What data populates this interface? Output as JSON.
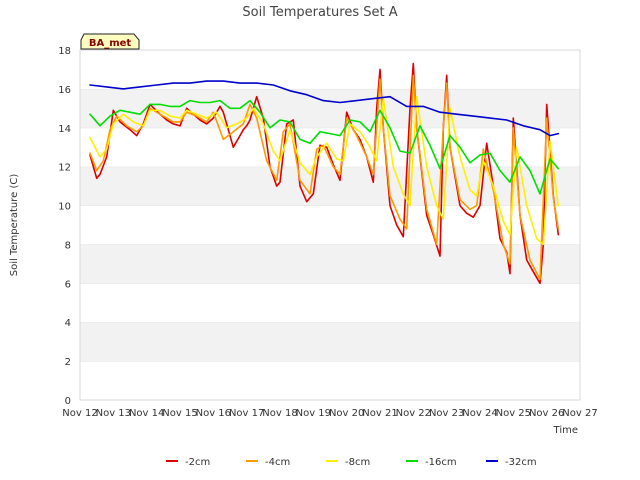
{
  "chart_data": {
    "type": "line",
    "title": "Soil Temperatures Set A",
    "xlabel": "Time",
    "ylabel": "Soil Temperature (C)",
    "ylim": [
      0,
      18
    ],
    "yticks": [
      0,
      2,
      4,
      6,
      8,
      10,
      12,
      14,
      16,
      18
    ],
    "xlim": [
      12,
      27
    ],
    "xticks": [
      {
        "v": 12,
        "label": "Nov 12"
      },
      {
        "v": 13,
        "label": "Nov 13"
      },
      {
        "v": 14,
        "label": "Nov 14"
      },
      {
        "v": 15,
        "label": "Nov 15"
      },
      {
        "v": 16,
        "label": "Nov 16"
      },
      {
        "v": 17,
        "label": "Nov 17"
      },
      {
        "v": 18,
        "label": "Nov 18"
      },
      {
        "v": 19,
        "label": "Nov 19"
      },
      {
        "v": 20,
        "label": "Nov 20"
      },
      {
        "v": 21,
        "label": "Nov 21"
      },
      {
        "v": 22,
        "label": "Nov 22"
      },
      {
        "v": 23,
        "label": "Nov 23"
      },
      {
        "v": 24,
        "label": "Nov 24"
      },
      {
        "v": 25,
        "label": "Nov 25"
      },
      {
        "v": 26,
        "label": "Nov 26"
      },
      {
        "v": 27,
        "label": "Nov 27"
      }
    ],
    "grid": "alternating horizontal bands",
    "legend_position": "bottom",
    "annotation": "BA_met",
    "series": [
      {
        "name": "-2cm",
        "color": "#dd0000",
        "x": [
          12.3,
          12.5,
          12.6,
          12.8,
          13.0,
          13.2,
          13.5,
          13.7,
          13.9,
          14.1,
          14.4,
          14.6,
          14.8,
          15.0,
          15.2,
          15.4,
          15.6,
          15.8,
          16.0,
          16.2,
          16.3,
          16.6,
          16.8,
          16.9,
          17.0,
          17.1,
          17.3,
          17.5,
          17.7,
          17.9,
          18.0,
          18.2,
          18.4,
          18.6,
          18.8,
          19.0,
          19.2,
          19.4,
          19.6,
          19.8,
          20.0,
          20.2,
          20.4,
          20.6,
          20.8,
          20.9,
          21.0,
          21.1,
          21.3,
          21.5,
          21.7,
          21.9,
          22.0,
          22.1,
          22.4,
          22.6,
          22.8,
          22.9,
          23.0,
          23.1,
          23.4,
          23.6,
          23.8,
          24.0,
          24.2,
          24.4,
          24.6,
          24.8,
          24.9,
          25.0,
          25.2,
          25.4,
          25.6,
          25.8,
          25.9,
          26.0,
          26.2,
          26.35
        ],
        "y": [
          12.6,
          11.4,
          11.6,
          12.5,
          14.9,
          14.3,
          13.9,
          13.6,
          14.2,
          15.2,
          14.7,
          14.4,
          14.2,
          14.1,
          15.0,
          14.7,
          14.4,
          14.2,
          14.5,
          15.1,
          14.8,
          13.0,
          13.6,
          13.9,
          14.1,
          14.4,
          15.6,
          14.5,
          12.0,
          11.0,
          11.2,
          14.2,
          14.4,
          11.0,
          10.2,
          10.6,
          13.1,
          13.0,
          12.1,
          11.3,
          14.8,
          13.9,
          13.4,
          12.5,
          11.2,
          15.0,
          17.0,
          14.0,
          10.0,
          9.0,
          8.4,
          15.0,
          17.3,
          14.0,
          9.5,
          8.5,
          7.4,
          14.0,
          16.7,
          13.0,
          10.0,
          9.6,
          9.4,
          10.0,
          13.2,
          11.0,
          8.3,
          7.6,
          6.5,
          14.5,
          9.5,
          7.2,
          6.6,
          6.0,
          8.0,
          15.2,
          10.5,
          8.5
        ]
      },
      {
        "name": "-4cm",
        "color": "#ff9900",
        "x": [
          12.3,
          12.5,
          12.7,
          12.9,
          13.1,
          13.4,
          13.7,
          13.9,
          14.1,
          14.4,
          14.6,
          14.8,
          15.0,
          15.2,
          15.5,
          15.8,
          16.0,
          16.3,
          16.6,
          16.9,
          17.1,
          17.3,
          17.6,
          17.9,
          18.1,
          18.3,
          18.6,
          18.9,
          19.1,
          19.3,
          19.6,
          19.8,
          20.0,
          20.3,
          20.6,
          20.8,
          21.0,
          21.1,
          21.3,
          21.6,
          21.8,
          22.0,
          22.1,
          22.4,
          22.7,
          22.9,
          23.0,
          23.1,
          23.4,
          23.7,
          23.9,
          24.1,
          24.4,
          24.7,
          24.9,
          25.0,
          25.2,
          25.5,
          25.8,
          26.0,
          26.2,
          26.35
        ],
        "y": [
          12.7,
          11.8,
          12.3,
          13.9,
          14.6,
          14.1,
          13.8,
          14.1,
          15.0,
          14.7,
          14.5,
          14.3,
          14.3,
          14.8,
          14.6,
          14.3,
          14.8,
          13.4,
          13.8,
          14.2,
          15.2,
          14.5,
          12.3,
          11.3,
          13.8,
          14.2,
          11.3,
          10.6,
          12.9,
          13.1,
          12.0,
          11.6,
          14.5,
          13.6,
          12.5,
          11.6,
          16.5,
          14.0,
          10.5,
          9.3,
          8.8,
          16.7,
          14.0,
          9.8,
          8.0,
          14.0,
          16.3,
          13.0,
          10.3,
          9.8,
          10.0,
          12.9,
          10.8,
          8.0,
          7.0,
          14.0,
          9.5,
          7.2,
          6.2,
          14.5,
          10.4,
          8.8
        ]
      },
      {
        "name": "-8cm",
        "color": "#ffee00",
        "x": [
          12.3,
          12.6,
          12.8,
          13.0,
          13.3,
          13.6,
          13.9,
          14.1,
          14.4,
          14.7,
          15.0,
          15.2,
          15.5,
          15.8,
          16.1,
          16.4,
          16.7,
          17.0,
          17.2,
          17.5,
          17.8,
          18.0,
          18.3,
          18.6,
          18.9,
          19.1,
          19.4,
          19.7,
          19.9,
          20.1,
          20.4,
          20.7,
          20.9,
          21.1,
          21.4,
          21.7,
          21.9,
          22.1,
          22.4,
          22.7,
          22.9,
          23.1,
          23.4,
          23.7,
          23.9,
          24.1,
          24.4,
          24.7,
          24.9,
          25.1,
          25.4,
          25.7,
          25.9,
          26.1,
          26.35
        ],
        "y": [
          13.5,
          12.5,
          12.9,
          14.2,
          14.7,
          14.3,
          14.1,
          14.9,
          14.9,
          14.6,
          14.5,
          14.9,
          14.7,
          14.5,
          14.8,
          14.0,
          14.2,
          14.5,
          15.0,
          14.2,
          12.8,
          12.3,
          13.9,
          12.2,
          11.6,
          12.5,
          13.2,
          12.4,
          12.3,
          14.2,
          13.8,
          13.0,
          12.3,
          15.5,
          12.0,
          10.6,
          10.0,
          15.6,
          12.0,
          10.0,
          9.3,
          15.0,
          12.5,
          10.8,
          10.5,
          12.3,
          11.0,
          9.2,
          8.5,
          13.0,
          10.0,
          8.3,
          8.0,
          13.3,
          10.0
        ]
      },
      {
        "name": "-16cm",
        "color": "#00dd00",
        "x": [
          12.3,
          12.6,
          12.9,
          13.2,
          13.5,
          13.8,
          14.1,
          14.4,
          14.7,
          15.0,
          15.3,
          15.6,
          15.9,
          16.2,
          16.5,
          16.8,
          17.1,
          17.4,
          17.7,
          18.0,
          18.3,
          18.6,
          18.9,
          19.2,
          19.5,
          19.8,
          20.1,
          20.4,
          20.7,
          21.0,
          21.3,
          21.6,
          21.9,
          22.2,
          22.5,
          22.8,
          23.1,
          23.4,
          23.7,
          24.0,
          24.3,
          24.6,
          24.9,
          25.2,
          25.5,
          25.8,
          26.1,
          26.35
        ],
        "y": [
          14.7,
          14.1,
          14.6,
          14.9,
          14.8,
          14.7,
          15.2,
          15.2,
          15.1,
          15.1,
          15.4,
          15.3,
          15.3,
          15.4,
          15.0,
          15.0,
          15.4,
          14.8,
          14.0,
          14.4,
          14.3,
          13.4,
          13.2,
          13.8,
          13.7,
          13.6,
          14.4,
          14.3,
          13.8,
          14.9,
          14.0,
          12.8,
          12.7,
          14.1,
          13.1,
          11.9,
          13.6,
          13.0,
          12.2,
          12.6,
          12.7,
          11.8,
          11.2,
          12.5,
          11.8,
          10.6,
          12.4,
          11.9
        ]
      },
      {
        "name": "-32cm",
        "color": "#0000cc",
        "x": [
          12.3,
          12.8,
          13.3,
          13.8,
          14.3,
          14.8,
          15.3,
          15.8,
          16.3,
          16.8,
          17.3,
          17.8,
          18.3,
          18.8,
          19.3,
          19.8,
          20.3,
          20.8,
          21.3,
          21.8,
          22.3,
          22.8,
          23.3,
          23.8,
          24.3,
          24.8,
          25.3,
          25.8,
          26.1,
          26.35
        ],
        "y": [
          16.2,
          16.1,
          16.0,
          16.1,
          16.2,
          16.3,
          16.3,
          16.4,
          16.4,
          16.3,
          16.3,
          16.2,
          15.9,
          15.7,
          15.4,
          15.3,
          15.4,
          15.5,
          15.6,
          15.1,
          15.1,
          14.8,
          14.7,
          14.6,
          14.5,
          14.4,
          14.1,
          13.9,
          13.6,
          13.7
        ]
      }
    ]
  }
}
